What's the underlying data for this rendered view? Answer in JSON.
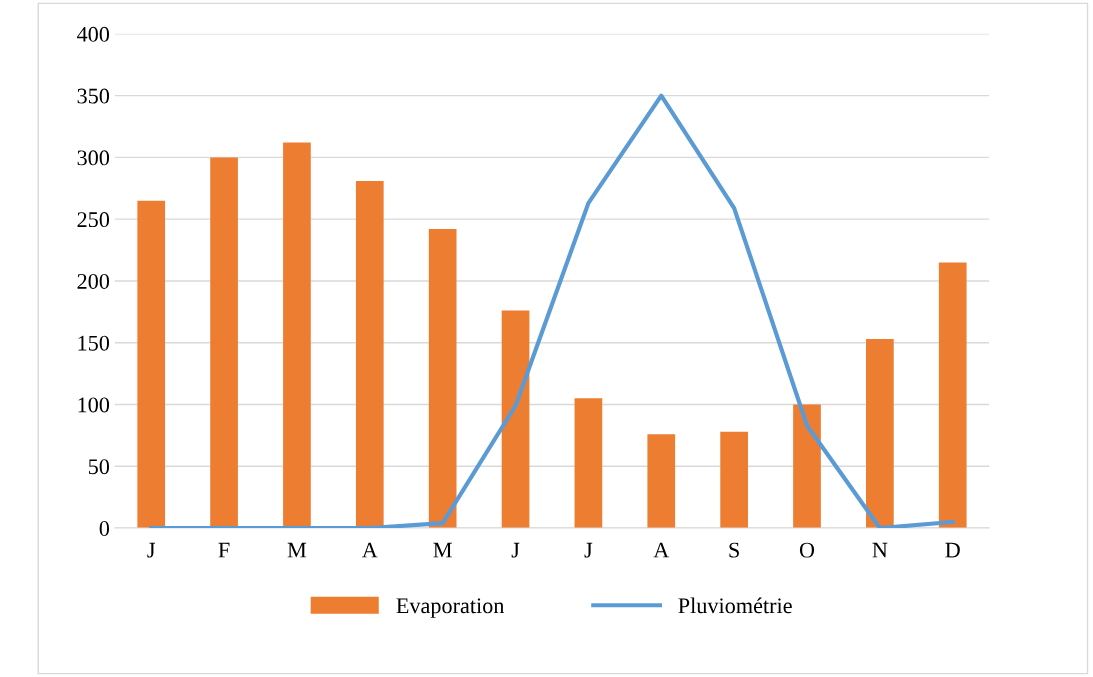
{
  "chart_data": {
    "type": "bar",
    "categories": [
      "J",
      "F",
      "M",
      "A",
      "M",
      "J",
      "J",
      "A",
      "S",
      "O",
      "N",
      "D"
    ],
    "series": [
      {
        "name": "Evaporation",
        "color": "#ed7d31",
        "values": [
          265,
          300,
          312,
          281,
          242,
          176,
          105,
          76,
          78,
          100,
          153,
          215
        ]
      },
      {
        "name": "Pluviométrie",
        "type": "line",
        "color": "#5b9bd5",
        "values": [
          0,
          0,
          0,
          0,
          4,
          99,
          263,
          350,
          259,
          83,
          0,
          5
        ]
      }
    ],
    "ylim": [
      0,
      400
    ],
    "yticks": [
      0,
      50,
      100,
      150,
      200,
      250,
      300,
      350,
      400
    ],
    "grid": "y",
    "legend": "bottom",
    "marker": "none",
    "line_style": "solid"
  }
}
